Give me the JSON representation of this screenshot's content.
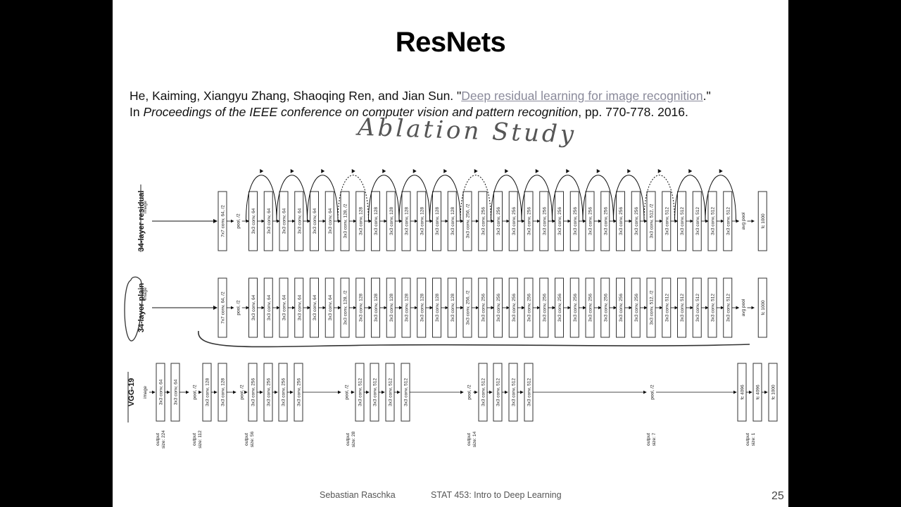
{
  "slide": {
    "title": "ResNets",
    "citation": {
      "authors": "He, Kaiming, Xiangyu Zhang, Shaoqing Ren, and Jian Sun. \"",
      "paper_title": "Deep residual learning for image recognition",
      "after_title": ".\"",
      "line2_prefix": "In ",
      "venue": "Proceedings of the IEEE conference on computer vision and pattern recognition",
      "line2_suffix": ", pp. 770-778. 2016."
    },
    "handwritten_note": "Ablation Study",
    "footer": {
      "author": "Sebastian Raschka",
      "course": "STAT 453: Intro to Deep Learning",
      "page": "25"
    }
  },
  "diagram": {
    "rows": [
      {
        "label": "34-layer residual",
        "input_label": "image",
        "layers": [
          "7x7 conv, 64, /2",
          "pool, /2",
          "3x3 conv, 64",
          "3x3 conv, 64",
          "3x3 conv, 64",
          "3x3 conv, 64",
          "3x3 conv, 64",
          "3x3 conv, 64",
          "3x3 conv, 128, /2",
          "3x3 conv, 128",
          "3x3 conv, 128",
          "3x3 conv, 128",
          "3x3 conv, 128",
          "3x3 conv, 128",
          "3x3 conv, 128",
          "3x3 conv, 128",
          "3x3 conv, 256, /2",
          "3x3 conv, 256",
          "3x3 conv, 256",
          "3x3 conv, 256",
          "3x3 conv, 256",
          "3x3 conv, 256",
          "3x3 conv, 256",
          "3x3 conv, 256",
          "3x3 conv, 256",
          "3x3 conv, 256",
          "3x3 conv, 256",
          "3x3 conv, 256",
          "3x3 conv, 512, /2",
          "3x3 conv, 512",
          "3x3 conv, 512",
          "3x3 conv, 512",
          "3x3 conv, 512",
          "3x3 conv, 512",
          "avg pool",
          "fc 1000"
        ],
        "shortcuts": 16,
        "projection_shortcuts": [
          3,
          7,
          13
        ]
      },
      {
        "label": "34-layer plain",
        "input_label": "image",
        "layers": [
          "7x7 conv, 64, /2",
          "pool, /2",
          "3x3 conv, 64",
          "3x3 conv, 64",
          "3x3 conv, 64",
          "3x3 conv, 64",
          "3x3 conv, 64",
          "3x3 conv, 64",
          "3x3 conv, 128, /2",
          "3x3 conv, 128",
          "3x3 conv, 128",
          "3x3 conv, 128",
          "3x3 conv, 128",
          "3x3 conv, 128",
          "3x3 conv, 128",
          "3x3 conv, 128",
          "3x3 conv, 256, /2",
          "3x3 conv, 256",
          "3x3 conv, 256",
          "3x3 conv, 256",
          "3x3 conv, 256",
          "3x3 conv, 256",
          "3x3 conv, 256",
          "3x3 conv, 256",
          "3x3 conv, 256",
          "3x3 conv, 256",
          "3x3 conv, 256",
          "3x3 conv, 256",
          "3x3 conv, 512, /2",
          "3x3 conv, 512",
          "3x3 conv, 512",
          "3x3 conv, 512",
          "3x3 conv, 512",
          "3x3 conv, 512",
          "avg pool",
          "fc 1000"
        ]
      },
      {
        "label": "VGG-19",
        "input_label": "image",
        "layers": [
          "3x3 conv, 64",
          "3x3 conv, 64",
          "pool, /2",
          "3x3 conv, 128",
          "3x3 conv, 128",
          "pool, /2",
          "3x3 conv, 256",
          "3x3 conv, 256",
          "3x3 conv, 256",
          "3x3 conv, 256",
          "pool, /2",
          "3x3 conv, 512",
          "3x3 conv, 512",
          "3x3 conv, 512",
          "3x3 conv, 512",
          "pool, /2",
          "3x3 conv, 512",
          "3x3 conv, 512",
          "3x3 conv, 512",
          "3x3 conv, 512",
          "pool, /2",
          "fc 4096",
          "fc 4096",
          "fc 1000"
        ]
      }
    ],
    "output_sizes": [
      "output\nsize: 224",
      "output\nsize: 112",
      "output\nsize: 56",
      "output\nsize: 28",
      "output\nsize: 14",
      "output\nsize: 7",
      "output\nsize: 1"
    ]
  }
}
